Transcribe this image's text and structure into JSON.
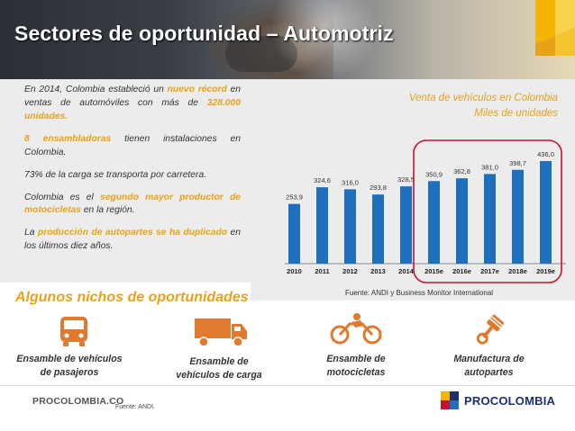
{
  "slide": {
    "title": "Sectores de oportunidad – Automotriz"
  },
  "facts": {
    "p1": {
      "prefix": "En 2014, Colombia estableció un ",
      "highlight1": "nuevo récord",
      "middle": " en ventas de automóviles con más de ",
      "highlight2": "328.000 unidades."
    },
    "p2": {
      "highlight": "8 ensambladoras",
      "rest": " tienen instalaciones en Colombia."
    },
    "p3": {
      "text": "73% de la carga se transporta por carretera."
    },
    "p4": {
      "prefix": "Colombia es el ",
      "highlight": "segundo mayor productor de motocicletas",
      "rest": " en la región."
    },
    "p5": {
      "prefix": "La ",
      "highlight": "producción de autopartes se ha duplicado",
      "rest": " en los últimos diez años."
    }
  },
  "chart_data": {
    "type": "bar",
    "title": "Venta de vehículos en Colombia",
    "subtitle": "Miles de unidades",
    "categories": [
      "2010",
      "2011",
      "2012",
      "2013",
      "2014",
      "2015e",
      "2016e",
      "2017e",
      "2018e",
      "2019e"
    ],
    "values": [
      253.9,
      324.6,
      316.0,
      293.8,
      328.5,
      350.9,
      362.8,
      381.0,
      398.7,
      436.0
    ],
    "value_labels": [
      "253,9",
      "324,6",
      "316,0",
      "293,8",
      "328,5",
      "350,9",
      "362,8",
      "381,0",
      "398,7",
      "436,0"
    ],
    "highlighted_range": [
      "2015e",
      "2019e"
    ],
    "bar_color": "#1f6fbf",
    "highlight_color": "#c8102e",
    "source": "Fuente: ANDI y Business Monitor International"
  },
  "niches": {
    "title": "Algunos nichos de oportunidades",
    "items": [
      {
        "label_line1": "Ensamble de vehículos",
        "label_line2": "de pasajeros",
        "icon": "bus-icon"
      },
      {
        "label_line1": "Ensamble de",
        "label_line2": "vehículos de carga",
        "icon": "truck-icon"
      },
      {
        "label_line1": "Ensamble de",
        "label_line2": "motocicletas",
        "icon": "motorcycle-icon"
      },
      {
        "label_line1": "Manufactura de",
        "label_line2": "autopartes",
        "icon": "piston-icon"
      }
    ]
  },
  "footer": {
    "brand_left": "PROCOLOMBIA.CO",
    "source": "Fuente: ANDI.",
    "brand_right": "PROCOLOMBIA"
  },
  "colors": {
    "accent": "#e8a21a",
    "icon_orange": "#e07a2e",
    "brand_navy": "#1c2f6e"
  }
}
